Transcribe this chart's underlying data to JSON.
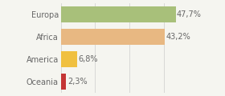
{
  "categories": [
    "Europa",
    "Africa",
    "America",
    "Oceania"
  ],
  "values": [
    47.7,
    43.2,
    6.8,
    2.3
  ],
  "labels": [
    "47,7%",
    "43,2%",
    "6,8%",
    "2,3%"
  ],
  "bar_colors": [
    "#a8c07a",
    "#e8b882",
    "#f0c040",
    "#c43535"
  ],
  "background_color": "#f5f5f0",
  "bar_height": 0.72,
  "xlim": [
    0,
    57
  ],
  "label_fontsize": 7.0,
  "tick_fontsize": 7.0,
  "text_color": "#666666"
}
